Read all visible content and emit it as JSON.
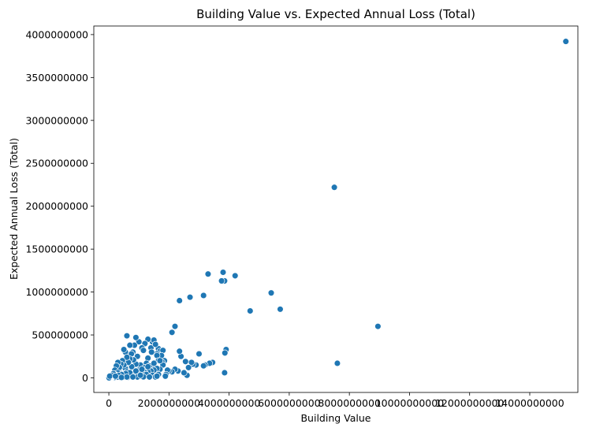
{
  "chart_data": {
    "type": "scatter",
    "title": "Building Value vs. Expected Annual Loss (Total)",
    "xlabel": "Building Value",
    "ylabel": "Expected Annual Loss (Total)",
    "xlim": [
      -500000000,
      15600000000
    ],
    "ylim": [
      -170000000,
      4100000000
    ],
    "xticks": [
      0,
      2000000000,
      4000000000,
      6000000000,
      8000000000,
      10000000000,
      12000000000,
      14000000000
    ],
    "xtick_labels": [
      "0",
      "2000000000",
      "4000000000",
      "6000000000",
      "8000000000",
      "10000000000",
      "12000000000",
      "14000000000"
    ],
    "yticks": [
      0,
      500000000,
      1000000000,
      1500000000,
      2000000000,
      2500000000,
      3000000000,
      3500000000,
      4000000000
    ],
    "ytick_labels": [
      "0",
      "500000000",
      "1000000000",
      "1500000000",
      "2000000000",
      "2500000000",
      "3000000000",
      "3500000000",
      "4000000000"
    ],
    "grid": false,
    "marker_color": "#1f77b4",
    "x": [
      15200000000,
      7500000000,
      8950000000,
      7600000000,
      5400000000,
      5700000000,
      4700000000,
      3300000000,
      3800000000,
      3850000000,
      4200000000,
      3750000000,
      3150000000,
      2700000000,
      2350000000,
      2200000000,
      2100000000,
      3900000000,
      3860000000,
      3850000000,
      3450000000,
      3350000000,
      3200000000,
      3150000000,
      3000000000,
      2900000000,
      2800000000,
      2750000000,
      2650000000,
      2600000000,
      2550000000,
      2500000000,
      2400000000,
      2350000000,
      2300000000,
      2200000000,
      2100000000,
      2000000000,
      1450000000,
      1500000000,
      1650000000,
      1700000000,
      1800000000,
      1850000000,
      1600000000,
      1300000000,
      1200000000,
      1100000000,
      1000000000,
      900000000,
      850000000,
      800000000,
      700000000,
      600000000,
      550000000,
      650000000,
      1400000000,
      1550000000,
      1750000000,
      1300000000,
      1250000000,
      1150000000,
      1050000000,
      950000000,
      750000000,
      500000000,
      1420000000,
      1600000000,
      1780000000,
      1650000000,
      1480000000,
      1350000000,
      1200000000,
      1100000000,
      1000000000,
      900000000,
      820000000,
      760000000,
      700000000,
      650000000,
      600000000,
      550000000,
      500000000,
      450000000,
      400000000,
      350000000,
      300000000,
      250000000,
      200000000,
      1800000000,
      1700000000,
      1600000000,
      1500000000,
      1400000000,
      1300000000,
      1200000000,
      1100000000,
      1000000000,
      900000000,
      800000000,
      700000000,
      600000000,
      500000000,
      400000000,
      300000000,
      200000000,
      100000000,
      1650000000,
      1450000000,
      1250000000,
      1050000000,
      850000000,
      650000000,
      450000000,
      350000000,
      250000000,
      150000000,
      120000000,
      1550000000,
      1350000000,
      1150000000,
      950000000,
      780000000,
      620000000,
      480000000,
      380000000,
      280000000,
      180000000,
      100000000,
      80000000,
      60000000,
      40000000,
      20000000,
      10000000,
      5000000,
      150000000,
      90000000,
      30000000,
      1700000000,
      1500000000,
      1300000000,
      1100000000,
      900000000,
      700000000,
      560000000,
      420000000,
      320000000,
      220000000,
      1950000000,
      1900000000,
      1880000000,
      1600000000,
      1350000000,
      1050000000,
      800000000,
      600000000,
      420000000
    ],
    "y": [
      3920000000,
      2220000000,
      600000000,
      170000000,
      990000000,
      800000000,
      780000000,
      1210000000,
      1230000000,
      1130000000,
      1190000000,
      1130000000,
      960000000,
      940000000,
      900000000,
      600000000,
      530000000,
      330000000,
      290000000,
      60000000,
      180000000,
      170000000,
      150000000,
      140000000,
      280000000,
      150000000,
      160000000,
      180000000,
      120000000,
      30000000,
      190000000,
      60000000,
      250000000,
      310000000,
      80000000,
      100000000,
      70000000,
      80000000,
      420000000,
      440000000,
      340000000,
      310000000,
      320000000,
      200000000,
      280000000,
      450000000,
      400000000,
      350000000,
      420000000,
      470000000,
      380000000,
      300000000,
      380000000,
      490000000,
      300000000,
      230000000,
      350000000,
      390000000,
      260000000,
      230000000,
      170000000,
      320000000,
      150000000,
      250000000,
      280000000,
      330000000,
      300000000,
      260000000,
      180000000,
      200000000,
      150000000,
      140000000,
      120000000,
      100000000,
      90000000,
      160000000,
      210000000,
      130000000,
      220000000,
      180000000,
      240000000,
      110000000,
      150000000,
      200000000,
      160000000,
      120000000,
      180000000,
      140000000,
      90000000,
      150000000,
      100000000,
      110000000,
      90000000,
      80000000,
      70000000,
      60000000,
      50000000,
      70000000,
      60000000,
      50000000,
      60000000,
      70000000,
      40000000,
      50000000,
      60000000,
      40000000,
      30000000,
      40000000,
      30000000,
      40000000,
      20000000,
      30000000,
      20000000,
      25000000,
      20000000,
      30000000,
      20000000,
      15000000,
      10000000,
      8000000,
      12000000,
      10000000,
      8000000,
      5000000,
      10000000,
      6000000,
      8000000,
      5000000,
      4000000,
      3000000,
      2000000,
      2000000,
      1000000,
      1000000,
      500000,
      50000000,
      30000000,
      20000000,
      200000000,
      170000000,
      130000000,
      100000000,
      80000000,
      60000000,
      50000000,
      40000000,
      30000000,
      20000000,
      90000000,
      40000000,
      20000000,
      20000000,
      10000000,
      30000000,
      10000000,
      10000000,
      5000000
    ]
  }
}
